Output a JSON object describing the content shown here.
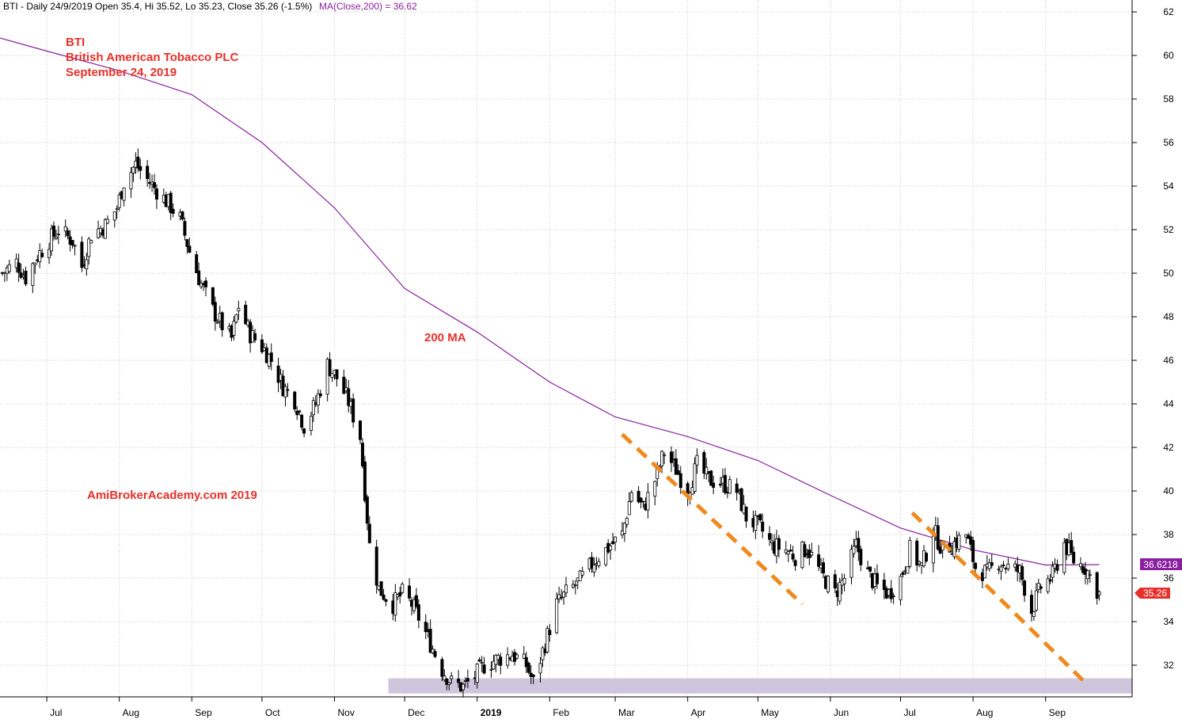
{
  "header": {
    "info": "BTI - Daily 24/9/2019 Open 35.4, Hi 35.52, Lo 35.23, Close 35.26 (-1.5%)",
    "ma_label": "MA(Close,200) = 36.62"
  },
  "annotations": {
    "ticker": "BTI",
    "company": "British American Tobacco PLC",
    "date": "September 24, 2019",
    "ma_label": "200 MA",
    "site": "AmiBrokerAcademy.com   2019"
  },
  "colors": {
    "grid": "#c8c8c8",
    "ma_line": "#8a1fa0",
    "trendline": "#f08a1e",
    "support_zone": "#cfc6de",
    "annotation_text": "#e8302a",
    "ma_badge": "#8a1fa0",
    "close_badge": "#e8302a"
  },
  "chart_data": {
    "type": "candlestick",
    "title": "BTI - Daily",
    "y_ticks": [
      32,
      34,
      36,
      38,
      40,
      42,
      44,
      46,
      48,
      50,
      52,
      54,
      56,
      58,
      60,
      62
    ],
    "ylim": [
      30.5,
      62.5
    ],
    "x_ticks": [
      {
        "label": "Jul",
        "date": "2018-07-01"
      },
      {
        "label": "Aug",
        "date": "2018-08-01"
      },
      {
        "label": "Sep",
        "date": "2018-09-01"
      },
      {
        "label": "Oct",
        "date": "2018-10-01"
      },
      {
        "label": "Nov",
        "date": "2018-11-01"
      },
      {
        "label": "Dec",
        "date": "2018-12-01"
      },
      {
        "label": "2019",
        "date": "2019-01-01",
        "bold": true
      },
      {
        "label": "Feb",
        "date": "2019-02-01"
      },
      {
        "label": "Mar",
        "date": "2019-03-01"
      },
      {
        "label": "Apr",
        "date": "2019-04-01"
      },
      {
        "label": "May",
        "date": "2019-05-01"
      },
      {
        "label": "Jun",
        "date": "2019-06-01"
      },
      {
        "label": "Jul",
        "date": "2019-07-01"
      },
      {
        "label": "Aug",
        "date": "2019-08-01"
      },
      {
        "label": "Sep",
        "date": "2019-09-01"
      }
    ],
    "xlim": [
      "2018-06-11",
      "2019-10-08"
    ],
    "grid": true,
    "last_close": 35.26,
    "last_close_label": "35.26",
    "ma200_value": 36.62,
    "ma200_label": "36.6218",
    "close_path": [
      [
        "2018-06-12",
        50.0
      ],
      [
        "2018-06-18",
        50.5
      ],
      [
        "2018-06-22",
        49.8
      ],
      [
        "2018-06-27",
        50.8
      ],
      [
        "2018-07-02",
        51.5
      ],
      [
        "2018-07-06",
        52.0
      ],
      [
        "2018-07-12",
        51.5
      ],
      [
        "2018-07-16",
        50.3
      ],
      [
        "2018-07-20",
        51.8
      ],
      [
        "2018-07-26",
        52.2
      ],
      [
        "2018-07-31",
        53.0
      ],
      [
        "2018-08-03",
        54.2
      ],
      [
        "2018-08-08",
        55.0
      ],
      [
        "2018-08-13",
        54.3
      ],
      [
        "2018-08-17",
        53.8
      ],
      [
        "2018-08-22",
        53.2
      ],
      [
        "2018-08-27",
        52.5
      ],
      [
        "2018-08-31",
        51.0
      ],
      [
        "2018-09-05",
        49.5
      ],
      [
        "2018-09-10",
        48.3
      ],
      [
        "2018-09-14",
        47.6
      ],
      [
        "2018-09-18",
        47.0
      ],
      [
        "2018-09-21",
        48.5
      ],
      [
        "2018-09-26",
        47.2
      ],
      [
        "2018-10-02",
        46.5
      ],
      [
        "2018-10-05",
        46.0
      ],
      [
        "2018-10-10",
        44.8
      ],
      [
        "2018-10-15",
        44.2
      ],
      [
        "2018-10-19",
        43.0
      ],
      [
        "2018-10-24",
        44.0
      ],
      [
        "2018-10-29",
        45.8
      ],
      [
        "2018-11-02",
        45.2
      ],
      [
        "2018-11-07",
        44.1
      ],
      [
        "2018-11-12",
        42.5
      ],
      [
        "2018-11-16",
        37.5
      ],
      [
        "2018-11-20",
        35.5
      ],
      [
        "2018-11-26",
        34.8
      ],
      [
        "2018-11-30",
        35.3
      ],
      [
        "2018-12-04",
        34.8
      ],
      [
        "2018-12-07",
        34.2
      ],
      [
        "2018-12-12",
        33.0
      ],
      [
        "2018-12-17",
        31.8
      ],
      [
        "2018-12-21",
        31.2
      ],
      [
        "2018-12-26",
        31.0
      ],
      [
        "2018-12-31",
        31.5
      ],
      [
        "2019-01-04",
        32.0
      ],
      [
        "2019-01-10",
        32.3
      ],
      [
        "2019-01-16",
        32.5
      ],
      [
        "2019-01-22",
        32.0
      ],
      [
        "2019-01-25",
        31.2
      ],
      [
        "2019-01-30",
        33.0
      ],
      [
        "2019-02-04",
        34.8
      ],
      [
        "2019-02-08",
        35.3
      ],
      [
        "2019-02-14",
        35.9
      ],
      [
        "2019-02-20",
        36.8
      ],
      [
        "2019-02-26",
        37.4
      ],
      [
        "2019-03-04",
        38.0
      ],
      [
        "2019-03-08",
        40.0
      ],
      [
        "2019-03-13",
        39.2
      ],
      [
        "2019-03-18",
        40.5
      ],
      [
        "2019-03-22",
        41.8
      ],
      [
        "2019-03-27",
        41.0
      ],
      [
        "2019-04-01",
        40.0
      ],
      [
        "2019-04-05",
        41.2
      ],
      [
        "2019-04-10",
        40.5
      ],
      [
        "2019-04-15",
        40.4
      ],
      [
        "2019-04-22",
        40.0
      ],
      [
        "2019-04-26",
        38.8
      ],
      [
        "2019-05-02",
        38.3
      ],
      [
        "2019-05-07",
        37.5
      ],
      [
        "2019-05-13",
        37.3
      ],
      [
        "2019-05-17",
        37.0
      ],
      [
        "2019-05-22",
        37.4
      ],
      [
        "2019-05-28",
        36.2
      ],
      [
        "2019-06-03",
        35.3
      ],
      [
        "2019-06-07",
        36.0
      ],
      [
        "2019-06-12",
        37.5
      ],
      [
        "2019-06-17",
        36.2
      ],
      [
        "2019-06-21",
        35.6
      ],
      [
        "2019-06-26",
        35.3
      ],
      [
        "2019-07-01",
        36.0
      ],
      [
        "2019-07-05",
        37.3
      ],
      [
        "2019-07-10",
        36.5
      ],
      [
        "2019-07-15",
        38.2
      ],
      [
        "2019-07-19",
        37.3
      ],
      [
        "2019-07-24",
        37.6
      ],
      [
        "2019-07-29",
        38.0
      ],
      [
        "2019-08-02",
        36.5
      ],
      [
        "2019-08-07",
        36.2
      ],
      [
        "2019-08-12",
        36.8
      ],
      [
        "2019-08-16",
        36.5
      ],
      [
        "2019-08-21",
        36.3
      ],
      [
        "2019-08-26",
        34.5
      ],
      [
        "2019-08-30",
        35.6
      ],
      [
        "2019-09-04",
        36.1
      ],
      [
        "2019-09-09",
        37.6
      ],
      [
        "2019-09-13",
        36.8
      ],
      [
        "2019-09-18",
        36.5
      ],
      [
        "2019-09-24",
        35.26
      ]
    ],
    "ma200": [
      [
        "2018-06-11",
        60.8
      ],
      [
        "2018-07-01",
        60.2
      ],
      [
        "2018-08-01",
        59.3
      ],
      [
        "2018-09-01",
        58.2
      ],
      [
        "2018-10-01",
        56.0
      ],
      [
        "2018-11-01",
        53.0
      ],
      [
        "2018-12-01",
        49.3
      ],
      [
        "2019-01-01",
        47.3
      ],
      [
        "2019-02-01",
        45.0
      ],
      [
        "2019-03-01",
        43.4
      ],
      [
        "2019-04-01",
        42.5
      ],
      [
        "2019-05-01",
        41.4
      ],
      [
        "2019-06-01",
        39.8
      ],
      [
        "2019-07-01",
        38.3
      ],
      [
        "2019-08-01",
        37.3
      ],
      [
        "2019-09-01",
        36.6
      ],
      [
        "2019-09-24",
        36.62
      ]
    ],
    "trendlines": [
      {
        "from": [
          "2019-03-04",
          42.6
        ],
        "to": [
          "2019-05-20",
          34.8
        ]
      },
      {
        "from": [
          "2019-07-06",
          39.0
        ],
        "to": [
          "2019-09-18",
          31.2
        ]
      }
    ],
    "support_zone": {
      "from_date": "2018-11-24",
      "y_low": 30.7,
      "y_high": 31.4
    }
  }
}
